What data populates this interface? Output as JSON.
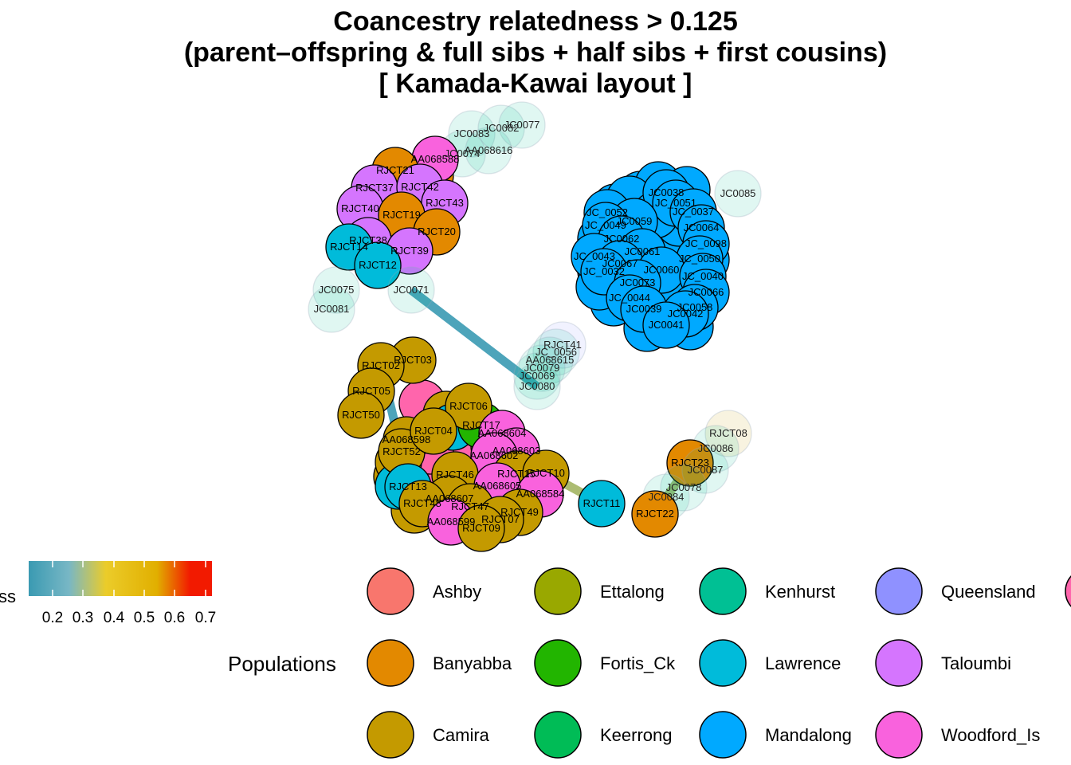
{
  "title": {
    "line1": "Coancestry relatedness > 0.125",
    "line2": "(parent–offspring & full sibs + half sibs + first cousins)",
    "line3": "[ Kamada-Kawai layout ]"
  },
  "colors": {
    "Ashby": "#F8766D",
    "Banyabba": "#E38900",
    "Camira": "#C49A00",
    "Ettalong": "#99A800",
    "Fortis_Ck": "#22B500",
    "Keerrong": "#00BC56",
    "Kenhurst": "#00C094",
    "Lawrence": "#00BBDA",
    "Mandalong": "#00A9FF",
    "Queensland": "#8F91FF",
    "Taloumbi": "#D575FE",
    "Woodford_Is": "#F962DD",
    "PinkExtra": "#FF65AC"
  },
  "legend": {
    "populations_title": "Populations",
    "relatedness_title_fragment": "ss",
    "relatedness_ticks": [
      "0.2",
      "0.3",
      "0.4",
      "0.5",
      "0.6",
      "0.7"
    ],
    "populations": [
      {
        "name": "Ashby",
        "color": "#F8766D"
      },
      {
        "name": "Banyabba",
        "color": "#E38900"
      },
      {
        "name": "Camira",
        "color": "#C49A00"
      },
      {
        "name": "Ettalong",
        "color": "#99A800"
      },
      {
        "name": "Fortis_Ck",
        "color": "#22B500"
      },
      {
        "name": "Keerrong",
        "color": "#00BC56"
      },
      {
        "name": "Kenhurst",
        "color": "#00C094"
      },
      {
        "name": "Lawrence",
        "color": "#00BBDA"
      },
      {
        "name": "Mandalong",
        "color": "#00A9FF"
      },
      {
        "name": "Queensland",
        "color": "#8F91FF"
      },
      {
        "name": "Taloumbi",
        "color": "#D575FE"
      },
      {
        "name": "Woodford_Is",
        "color": "#F962DD"
      }
    ]
  },
  "edges": [
    {
      "from": "JC0071",
      "to": "JC0080",
      "relatedness": 0.2
    },
    {
      "from": "RJCT11",
      "to": "RJCT10",
      "relatedness": 0.32
    },
    {
      "from": "RJCT22",
      "to": "RJCT23",
      "relatedness": 0.35
    },
    {
      "from": "RJCT02",
      "to": "RJCT52",
      "relatedness": 0.2
    }
  ],
  "nodes": [
    {
      "id": "JC0083",
      "pop": "Kenhurst",
      "faded": true
    },
    {
      "id": "JC0082",
      "pop": "Kenhurst",
      "faded": true
    },
    {
      "id": "JC0077",
      "pop": "Kenhurst",
      "faded": true
    },
    {
      "id": "JC0074",
      "pop": "Kenhurst",
      "faded": true
    },
    {
      "id": "AA068616",
      "pop": "Kenhurst",
      "faded": true
    },
    {
      "id": "AA068588",
      "pop": "Woodford_Is",
      "faded": false
    },
    {
      "id": "RJCT21",
      "pop": "Banyabba",
      "faded": false
    },
    {
      "id": "RJCT37",
      "pop": "Taloumbi",
      "faded": false
    },
    {
      "id": "RJCT42",
      "pop": "Taloumbi",
      "faded": false
    },
    {
      "id": "RJCT43",
      "pop": "Taloumbi",
      "faded": false
    },
    {
      "id": "RJCT40",
      "pop": "Taloumbi",
      "faded": false
    },
    {
      "id": "RJCT19",
      "pop": "Banyabba",
      "faded": false
    },
    {
      "id": "RJCT20",
      "pop": "Banyabba",
      "faded": false
    },
    {
      "id": "RJCT38",
      "pop": "Taloumbi",
      "faded": false
    },
    {
      "id": "RJCT14",
      "pop": "Lawrence",
      "faded": false
    },
    {
      "id": "RJCT39",
      "pop": "Taloumbi",
      "faded": false
    },
    {
      "id": "RJCT12",
      "pop": "Lawrence",
      "faded": false
    },
    {
      "id": "JC0075",
      "pop": "Kenhurst",
      "faded": true
    },
    {
      "id": "JC0081",
      "pop": "Kenhurst",
      "faded": true
    },
    {
      "id": "JC0071",
      "pop": "Kenhurst",
      "faded": true
    },
    {
      "id": "JC0085",
      "pop": "Kenhurst",
      "faded": true
    },
    {
      "id": "JC0038",
      "pop": "Mandalong",
      "faded": false
    },
    {
      "id": "JC_0052",
      "pop": "Mandalong",
      "faded": false
    },
    {
      "id": "JC_0051",
      "pop": "Mandalong",
      "faded": false
    },
    {
      "id": "JC_0037",
      "pop": "Mandalong",
      "faded": false
    },
    {
      "id": "JC0059",
      "pop": "Mandalong",
      "faded": false
    },
    {
      "id": "JC_0049",
      "pop": "Mandalong",
      "faded": false
    },
    {
      "id": "JC0064",
      "pop": "Mandalong",
      "faded": false
    },
    {
      "id": "JC0062",
      "pop": "Mandalong",
      "faded": false
    },
    {
      "id": "JC_0098",
      "pop": "Mandalong",
      "faded": false
    },
    {
      "id": "JC_0043",
      "pop": "Mandalong",
      "faded": false
    },
    {
      "id": "JC0061",
      "pop": "Mandalong",
      "faded": false
    },
    {
      "id": "JC_0050",
      "pop": "Mandalong",
      "faded": false
    },
    {
      "id": "JC0067",
      "pop": "Mandalong",
      "faded": false
    },
    {
      "id": "JC_0032",
      "pop": "Mandalong",
      "faded": false
    },
    {
      "id": "JC0060",
      "pop": "Mandalong",
      "faded": false
    },
    {
      "id": "JC_0040",
      "pop": "Mandalong",
      "faded": false
    },
    {
      "id": "JC0073",
      "pop": "Mandalong",
      "faded": false
    },
    {
      "id": "JC0066",
      "pop": "Mandalong",
      "faded": false
    },
    {
      "id": "JC_0044",
      "pop": "Mandalong",
      "faded": false
    },
    {
      "id": "JC0039",
      "pop": "Mandalong",
      "faded": false
    },
    {
      "id": "JC0058",
      "pop": "Mandalong",
      "faded": false
    },
    {
      "id": "JC0042",
      "pop": "Mandalong",
      "faded": false
    },
    {
      "id": "JC0041",
      "pop": "Mandalong",
      "faded": false
    },
    {
      "id": "RJCT41",
      "pop": "Queensland",
      "faded": true
    },
    {
      "id": "JC_0056",
      "pop": "Kenhurst",
      "faded": true
    },
    {
      "id": "AA068615",
      "pop": "Kenhurst",
      "faded": true
    },
    {
      "id": "JC0079",
      "pop": "Kenhurst",
      "faded": true
    },
    {
      "id": "JC0069",
      "pop": "Kenhurst",
      "faded": true
    },
    {
      "id": "JC0080",
      "pop": "Kenhurst",
      "faded": true
    },
    {
      "id": "RJCT03",
      "pop": "Camira",
      "faded": false
    },
    {
      "id": "RJCT02",
      "pop": "Camira",
      "faded": false
    },
    {
      "id": "RJCT05",
      "pop": "Camira",
      "faded": false
    },
    {
      "id": "RJCT50",
      "pop": "Camira",
      "faded": false
    },
    {
      "id": "AA068598",
      "pop": "Camira",
      "faded": false
    },
    {
      "id": "RJCT52",
      "pop": "Camira",
      "faded": false
    },
    {
      "id": "RJCT17",
      "pop": "Fortis_Ck",
      "faded": false
    },
    {
      "id": "RJCT06",
      "pop": "Camira",
      "faded": false
    },
    {
      "id": "RJCT04",
      "pop": "Camira",
      "faded": false
    },
    {
      "id": "AA068604",
      "pop": "Woodford_Is",
      "faded": false
    },
    {
      "id": "AA068603",
      "pop": "Woodford_Is",
      "faded": false
    },
    {
      "id": "AA068602",
      "pop": "Woodford_Is",
      "faded": false
    },
    {
      "id": "RJCT46",
      "pop": "Camira",
      "faded": false
    },
    {
      "id": "RJCT15",
      "pop": "Camira",
      "faded": false
    },
    {
      "id": "RJCT10",
      "pop": "Camira",
      "faded": false
    },
    {
      "id": "RJCT13",
      "pop": "Lawrence",
      "faded": false
    },
    {
      "id": "AA068605",
      "pop": "Woodford_Is",
      "faded": false
    },
    {
      "id": "AA068607",
      "pop": "Camira",
      "faded": false
    },
    {
      "id": "RJCT48",
      "pop": "Camira",
      "faded": false
    },
    {
      "id": "RJCT47",
      "pop": "Camira",
      "faded": false
    },
    {
      "id": "AA068584",
      "pop": "Woodford_Is",
      "faded": false
    },
    {
      "id": "RJCT49",
      "pop": "Camira",
      "faded": false
    },
    {
      "id": "RJCT07",
      "pop": "Camira",
      "faded": false
    },
    {
      "id": "AA068599",
      "pop": "Woodford_Is",
      "faded": false
    },
    {
      "id": "RJCT09",
      "pop": "Camira",
      "faded": false
    },
    {
      "id": "RJCT11",
      "pop": "Lawrence",
      "faded": false
    },
    {
      "id": "RJCT08",
      "pop": "Camira",
      "faded": true
    },
    {
      "id": "JC0086",
      "pop": "Kenhurst",
      "faded": true
    },
    {
      "id": "RJCT23",
      "pop": "Banyabba",
      "faded": false
    },
    {
      "id": "JC0087",
      "pop": "Kenhurst",
      "faded": true
    },
    {
      "id": "JC0078",
      "pop": "Kenhurst",
      "faded": true
    },
    {
      "id": "JC0084",
      "pop": "Kenhurst",
      "faded": true
    },
    {
      "id": "RJCT22",
      "pop": "Banyabba",
      "faded": false
    }
  ]
}
